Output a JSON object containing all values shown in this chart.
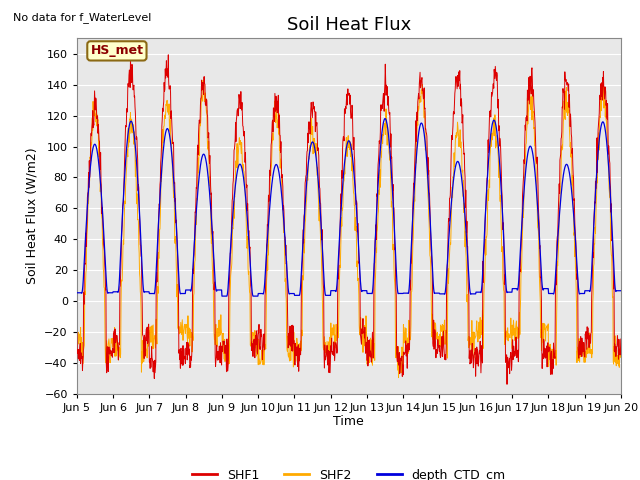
{
  "title": "Soil Heat Flux",
  "top_left_text": "No data for f_WaterLevel",
  "annotation_box_text": "HS_met",
  "xlabel": "Time",
  "ylabel": "Soil Heat Flux (W/m2)",
  "ylim": [
    -60,
    170
  ],
  "yticks": [
    -60,
    -40,
    -20,
    0,
    20,
    40,
    60,
    80,
    100,
    120,
    140,
    160
  ],
  "plot_bg_color": "#e8e8e8",
  "fig_bg_color": "#ffffff",
  "line_colors": {
    "SHF1": "#dd0000",
    "SHF2": "#ffaa00",
    "depth_CTD_cm": "#0000dd"
  },
  "x_date_labels": [
    "Jun 5",
    "Jun 6",
    "Jun 7",
    "Jun 8",
    "Jun 9",
    "Jun 10",
    "Jun 11",
    "Jun 12",
    "Jun 13",
    "Jun 14",
    "Jun 15",
    "Jun 16",
    "Jun 17",
    "Jun 18",
    "Jun 19",
    "Jun 20"
  ],
  "title_fontsize": 13,
  "label_fontsize": 9,
  "tick_fontsize": 8,
  "annotation_fontsize": 9
}
